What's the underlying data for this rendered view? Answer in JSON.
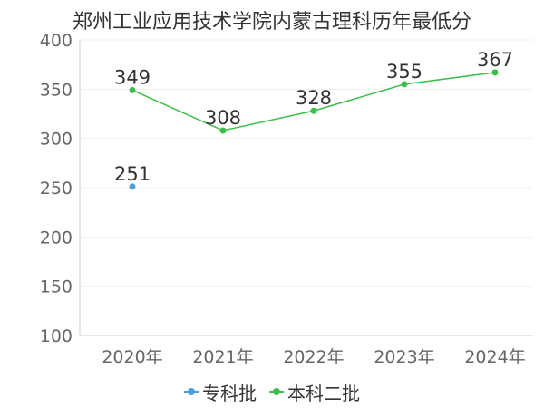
{
  "chart_data": {
    "type": "line",
    "title": "郑州工业应用技术学院内蒙古理科历年最低分",
    "categories": [
      "2020年",
      "2021年",
      "2022年",
      "2023年",
      "2024年"
    ],
    "ylim": [
      100,
      400
    ],
    "yticks": [
      100,
      150,
      200,
      250,
      300,
      350,
      400
    ],
    "grid": true,
    "legend_position": "bottom",
    "series": [
      {
        "name": "专科批",
        "color": "#4a9fe0",
        "values": [
          251,
          null,
          null,
          null,
          null
        ]
      },
      {
        "name": "本科二批",
        "color": "#3cbf4a",
        "values": [
          349,
          308,
          328,
          355,
          367
        ]
      }
    ]
  }
}
